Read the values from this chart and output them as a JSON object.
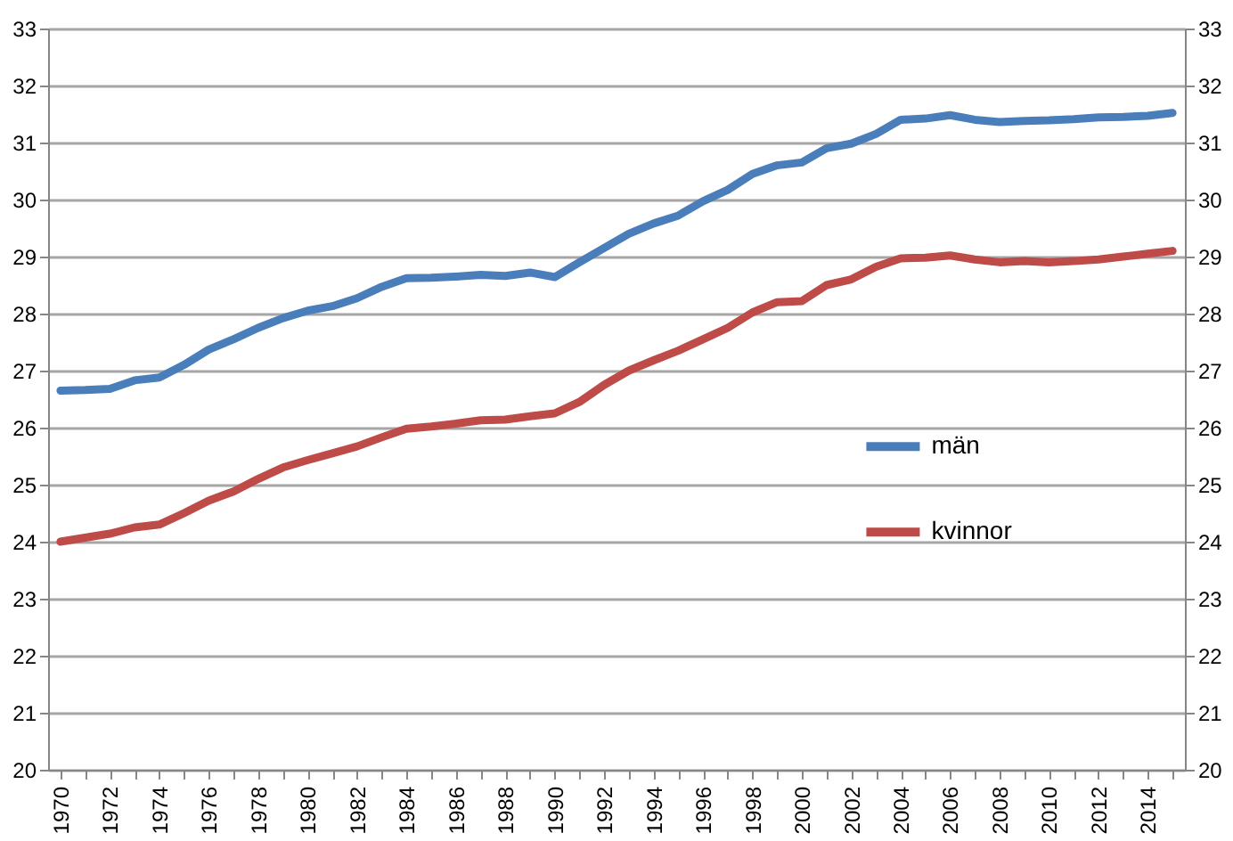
{
  "chart_data": {
    "type": "line",
    "categories": [
      "1970",
      null,
      "1972",
      null,
      "1974",
      null,
      "1976",
      null,
      "1978",
      null,
      "1980",
      null,
      "1982",
      null,
      "1984",
      null,
      "1986",
      null,
      "1988",
      null,
      "1990",
      null,
      "1992",
      null,
      "1994",
      null,
      "1996",
      null,
      "1998",
      null,
      "2000",
      null,
      "2002",
      null,
      "2004",
      null,
      "2006",
      null,
      "2008",
      null,
      "2010",
      null,
      "2012",
      null,
      "2014",
      null
    ],
    "series": [
      {
        "name": "män",
        "color": "#4a7ebb",
        "values": [
          26.65,
          26.66,
          26.68,
          26.83,
          26.88,
          27.1,
          27.37,
          27.55,
          27.75,
          27.92,
          28.05,
          28.13,
          28.27,
          28.47,
          28.62,
          28.63,
          28.65,
          28.68,
          28.66,
          28.72,
          28.64,
          28.9,
          29.15,
          29.4,
          29.58,
          29.72,
          29.97,
          30.17,
          30.45,
          30.6,
          30.65,
          30.9,
          30.98,
          31.15,
          31.4,
          31.42,
          31.48,
          31.4,
          31.36,
          31.38,
          31.39,
          31.41,
          31.44,
          31.45,
          31.47,
          31.52
        ]
      },
      {
        "name": "kvinnor",
        "color": "#be4b48",
        "values": [
          24.0,
          24.07,
          24.14,
          24.25,
          24.3,
          24.5,
          24.72,
          24.88,
          25.1,
          25.3,
          25.43,
          25.55,
          25.67,
          25.83,
          25.98,
          26.02,
          26.07,
          26.13,
          26.14,
          26.2,
          26.25,
          26.45,
          26.75,
          27.0,
          27.18,
          27.35,
          27.55,
          27.75,
          28.02,
          28.2,
          28.22,
          28.5,
          28.6,
          28.82,
          28.97,
          28.98,
          29.02,
          28.95,
          28.9,
          28.92,
          28.9,
          28.92,
          28.95,
          29.0,
          29.05,
          29.1
        ]
      }
    ],
    "ylim": [
      20,
      33
    ],
    "yticks": [
      20,
      21,
      22,
      23,
      24,
      25,
      26,
      27,
      28,
      29,
      30,
      31,
      32,
      33
    ],
    "y2lim": [
      20,
      33
    ],
    "y2ticks": [
      20,
      21,
      22,
      23,
      24,
      25,
      26,
      27,
      28,
      29,
      30,
      31,
      32,
      33
    ],
    "grid": "y",
    "legend": "right",
    "marker": "none",
    "line_style": "solid"
  }
}
